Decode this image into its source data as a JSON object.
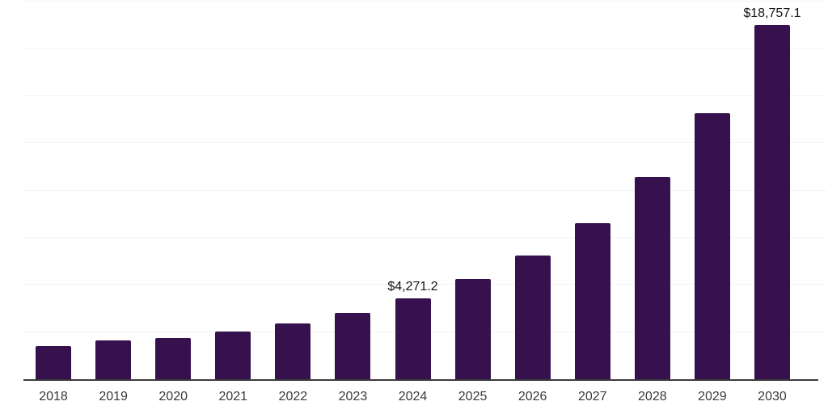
{
  "chart_data": {
    "type": "bar",
    "title": "",
    "xlabel": "",
    "ylabel": "",
    "legend": "none",
    "grid": true,
    "ylim": [
      0,
      20000
    ],
    "gridline_step": 2500,
    "categories": [
      "2018",
      "2019",
      "2020",
      "2021",
      "2022",
      "2023",
      "2024",
      "2025",
      "2026",
      "2027",
      "2028",
      "2029",
      "2030"
    ],
    "values": [
      1760,
      2060,
      2200,
      2540,
      2950,
      3520,
      4271.2,
      5290,
      6550,
      8280,
      10720,
      14090,
      18757.1
    ],
    "value_labels": [
      "",
      "",
      "",
      "",
      "",
      "",
      "$4,271.2",
      "",
      "",
      "",
      "",
      "",
      "$18,757.1"
    ],
    "labeled_points": [
      {
        "category": "2024",
        "text": "$4,271.2"
      },
      {
        "category": "2030",
        "text": "$18,757.1"
      }
    ]
  },
  "colors": {
    "background": "#ffffff",
    "bar": "#36114e",
    "gridline": "#f2f2f2",
    "axis_line": "#3c3c3c",
    "tick_label": "#3a3a3a",
    "value_label": "#141414"
  }
}
